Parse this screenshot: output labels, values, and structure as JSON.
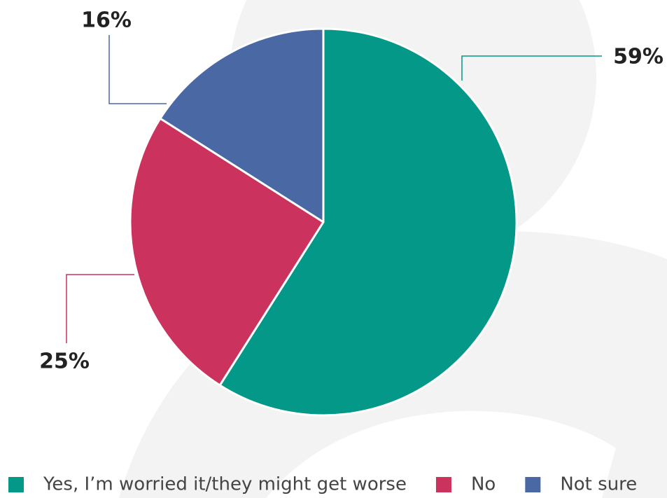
{
  "chart_data": {
    "type": "pie",
    "categories": [
      "Yes, I’m worried it/they might get worse",
      "No",
      "Not sure"
    ],
    "values": [
      59,
      25,
      16
    ],
    "value_labels": [
      "59%",
      "25%",
      "16%"
    ],
    "colors": [
      "#039887",
      "#cc325e",
      "#4a68a3"
    ],
    "legend": "bottom"
  }
}
